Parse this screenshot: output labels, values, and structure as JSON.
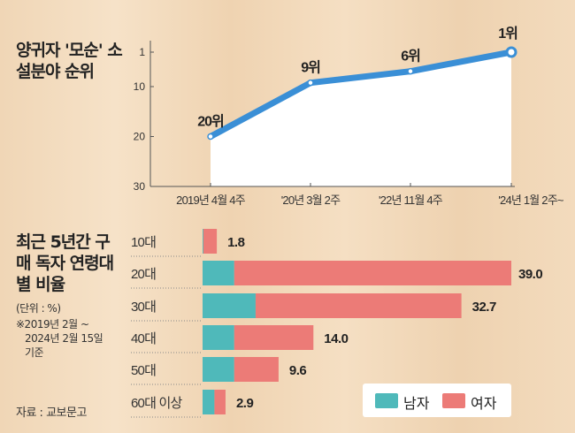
{
  "chart_data": [
    {
      "type": "line",
      "title": "양귀자 '모순' 소설분야 순위",
      "categories": [
        "2019년 4월 4주",
        "'20년 3월 2주",
        "'22년 11월 4주",
        "'24년 1월 2주~"
      ],
      "values": [
        20,
        9,
        6,
        1
      ],
      "data_labels": [
        "20위",
        "9위",
        "6위",
        "1위"
      ],
      "yticks": [
        "1",
        "10",
        "20",
        "30"
      ],
      "ylim": [
        30,
        1
      ],
      "y_inverted": true,
      "color": "#3a8fd6",
      "fill": "#ffffff"
    },
    {
      "type": "bar",
      "stacked": true,
      "orientation": "horizontal",
      "title": "최근 5년간 구매 독자 연령대별 비율",
      "unit": "(단위 : %)",
      "note": [
        "※2019년 2월 ~",
        "2024년 2월 15일",
        "기준"
      ],
      "source": "자료 : 교보문고",
      "categories": [
        "10대",
        "20대",
        "30대",
        "40대",
        "50대",
        "60대 이상"
      ],
      "totals": [
        "1.8",
        "39.0",
        "32.7",
        "14.0",
        "9.6",
        "2.9"
      ],
      "series": [
        {
          "name": "남자",
          "color": "#4fb9ba",
          "values": [
            0.1,
            4.0,
            6.7,
            4.0,
            4.0,
            1.5
          ]
        },
        {
          "name": "여자",
          "color": "#ec7b77",
          "values": [
            1.7,
            35.0,
            26.0,
            10.0,
            5.6,
            1.4
          ]
        }
      ],
      "xlim": [
        0,
        39.0
      ]
    }
  ]
}
